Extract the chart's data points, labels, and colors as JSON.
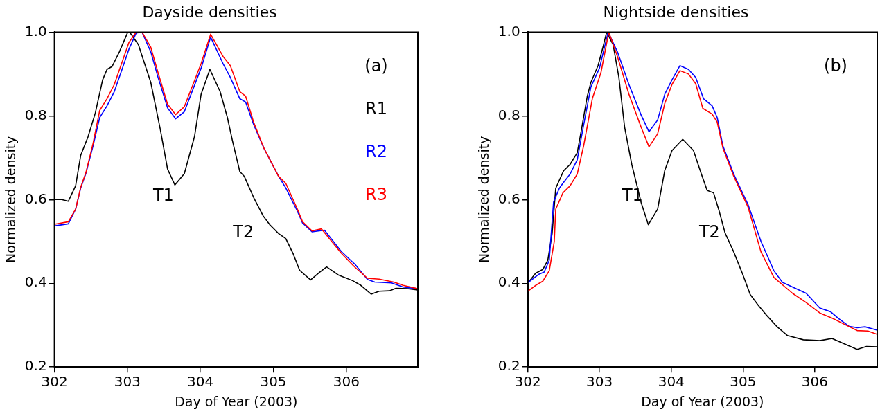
{
  "chart_data": [
    {
      "type": "line",
      "title": "Dayside densities",
      "xlabel": "Day of Year (2003)",
      "ylabel": "Normalized density",
      "xlim": [
        302,
        306.98
      ],
      "xticks": [
        302,
        303,
        304,
        305,
        306
      ],
      "ylim": [
        0.2,
        1.0
      ],
      "yticks": [
        0.2,
        0.4,
        0.6,
        0.8,
        {
          "value": 1.0,
          "label": "1.0"
        }
      ],
      "grid": false,
      "legend": "top right",
      "marker": "none",
      "line_style": "solid",
      "annotations": [
        "(a)",
        "T1",
        "T2"
      ],
      "series": [
        {
          "name": "R1",
          "color": "#000000",
          "x": [
            302,
            302.1,
            302.19,
            302.29,
            302.36,
            302.46,
            302.56,
            302.66,
            302.72,
            302.79,
            302.89,
            303.0,
            303.03,
            303.15,
            303.32,
            303.45,
            303.55,
            303.65,
            303.78,
            303.92,
            304.01,
            304.13,
            304.27,
            304.37,
            304.44,
            304.54,
            304.6,
            304.73,
            304.86,
            304.95,
            305.07,
            305.17,
            305.27,
            305.36,
            305.51,
            305.63,
            305.73,
            305.89,
            306.09,
            306.2,
            306.34,
            306.45,
            306.59,
            306.68,
            306.85,
            306.98
          ],
          "values": [
            0.6,
            0.6,
            0.596,
            0.633,
            0.706,
            0.75,
            0.807,
            0.886,
            0.911,
            0.918,
            0.953,
            0.998,
            1.0,
            0.97,
            0.88,
            0.768,
            0.673,
            0.635,
            0.662,
            0.751,
            0.852,
            0.911,
            0.858,
            0.796,
            0.74,
            0.667,
            0.656,
            0.605,
            0.561,
            0.54,
            0.519,
            0.507,
            0.471,
            0.431,
            0.408,
            0.426,
            0.439,
            0.42,
            0.406,
            0.395,
            0.374,
            0.381,
            0.382,
            0.388,
            0.387,
            0.384
          ]
        },
        {
          "name": "R2",
          "color": "#0000ff",
          "x": [
            302,
            302.19,
            302.29,
            302.36,
            302.43,
            302.53,
            302.62,
            302.72,
            302.82,
            302.92,
            303.02,
            303.12,
            303.2,
            303.32,
            303.42,
            303.55,
            303.66,
            303.78,
            303.91,
            304.01,
            304.14,
            304.31,
            304.41,
            304.54,
            304.62,
            304.73,
            304.87,
            305.07,
            305.17,
            305.33,
            305.4,
            305.53,
            305.7,
            305.93,
            306.12,
            306.29,
            306.39,
            306.62,
            306.78,
            306.98
          ],
          "values": [
            0.537,
            0.542,
            0.577,
            0.628,
            0.662,
            0.729,
            0.796,
            0.824,
            0.858,
            0.908,
            0.959,
            0.998,
            1.0,
            0.953,
            0.892,
            0.819,
            0.793,
            0.81,
            0.869,
            0.914,
            0.988,
            0.925,
            0.892,
            0.841,
            0.833,
            0.779,
            0.723,
            0.656,
            0.628,
            0.572,
            0.544,
            0.523,
            0.527,
            0.476,
            0.445,
            0.409,
            0.403,
            0.401,
            0.391,
            0.387
          ]
        },
        {
          "name": "R3",
          "color": "#ff0000",
          "x": [
            302,
            302.19,
            302.29,
            302.36,
            302.43,
            302.53,
            302.62,
            302.72,
            302.82,
            302.92,
            303.02,
            303.12,
            303.2,
            303.32,
            303.42,
            303.55,
            303.66,
            303.78,
            303.91,
            304.01,
            304.14,
            304.31,
            304.41,
            304.54,
            304.62,
            304.73,
            304.87,
            305.07,
            305.17,
            305.33,
            305.4,
            305.53,
            305.66,
            305.93,
            306.12,
            306.29,
            306.45,
            306.65,
            306.78,
            306.98
          ],
          "values": [
            0.541,
            0.547,
            0.577,
            0.63,
            0.664,
            0.735,
            0.813,
            0.841,
            0.875,
            0.925,
            0.975,
            1.0,
            1.0,
            0.964,
            0.903,
            0.828,
            0.803,
            0.822,
            0.88,
            0.925,
            0.995,
            0.942,
            0.92,
            0.858,
            0.847,
            0.785,
            0.723,
            0.656,
            0.639,
            0.577,
            0.547,
            0.525,
            0.53,
            0.472,
            0.438,
            0.412,
            0.41,
            0.403,
            0.395,
            0.387
          ]
        }
      ]
    },
    {
      "type": "line",
      "title": "Nightside densities",
      "xlabel": "Day of Year (2003)",
      "ylabel": "Normalized density",
      "xlim": [
        302,
        306.87
      ],
      "xticks": [
        302,
        303,
        304,
        305,
        306
      ],
      "ylim": [
        0.2,
        1.0
      ],
      "yticks": [
        0.2,
        0.4,
        0.6,
        0.8,
        {
          "value": 1.0,
          "label": "1.0"
        }
      ],
      "grid": false,
      "marker": "none",
      "line_style": "solid",
      "annotations": [
        "(b)",
        "T1",
        "T2"
      ],
      "series": [
        {
          "color": "#000000",
          "x": [
            302,
            302.11,
            302.21,
            302.28,
            302.34,
            302.39,
            302.5,
            302.59,
            302.69,
            302.75,
            302.83,
            302.88,
            302.98,
            303.05,
            303.1,
            303.19,
            303.27,
            303.35,
            303.45,
            303.58,
            303.68,
            303.81,
            303.91,
            304.01,
            304.16,
            304.31,
            304.42,
            304.5,
            304.59,
            304.67,
            304.75,
            304.87,
            304.99,
            305.1,
            305.21,
            305.32,
            305.47,
            305.62,
            305.84,
            306.07,
            306.24,
            306.4,
            306.59,
            306.72,
            306.87
          ],
          "values": [
            0.4,
            0.424,
            0.433,
            0.455,
            0.519,
            0.627,
            0.669,
            0.684,
            0.712,
            0.768,
            0.847,
            0.88,
            0.92,
            0.965,
            1.0,
            0.97,
            0.892,
            0.773,
            0.684,
            0.593,
            0.54,
            0.577,
            0.67,
            0.717,
            0.744,
            0.717,
            0.661,
            0.622,
            0.616,
            0.571,
            0.52,
            0.475,
            0.424,
            0.373,
            0.348,
            0.325,
            0.297,
            0.275,
            0.265,
            0.263,
            0.268,
            0.256,
            0.242,
            0.249,
            0.248
          ]
        },
        {
          "color": "#0000ff",
          "x": [
            302,
            302.15,
            302.23,
            302.3,
            302.36,
            302.44,
            302.49,
            302.59,
            302.69,
            302.78,
            302.88,
            303.0,
            303.12,
            303.25,
            303.41,
            303.58,
            303.69,
            303.81,
            303.91,
            304.01,
            304.12,
            304.24,
            304.34,
            304.45,
            304.57,
            304.64,
            304.72,
            304.87,
            305.07,
            305.25,
            305.43,
            305.55,
            305.88,
            306.07,
            306.22,
            306.33,
            306.48,
            306.59,
            306.7,
            306.87
          ],
          "values": [
            0.401,
            0.421,
            0.427,
            0.455,
            0.594,
            0.627,
            0.639,
            0.661,
            0.695,
            0.779,
            0.869,
            0.914,
            1.0,
            0.953,
            0.875,
            0.802,
            0.762,
            0.79,
            0.852,
            0.886,
            0.92,
            0.911,
            0.892,
            0.841,
            0.824,
            0.796,
            0.728,
            0.661,
            0.588,
            0.5,
            0.43,
            0.402,
            0.376,
            0.341,
            0.332,
            0.316,
            0.297,
            0.294,
            0.296,
            0.288
          ]
        },
        {
          "color": "#ff0000",
          "x": [
            302,
            302.11,
            302.21,
            302.3,
            302.37,
            302.39,
            302.49,
            302.59,
            302.69,
            302.78,
            302.9,
            303.02,
            303.13,
            303.25,
            303.41,
            303.58,
            303.69,
            303.81,
            303.91,
            304.01,
            304.12,
            304.24,
            304.34,
            304.44,
            304.57,
            304.64,
            304.72,
            304.87,
            305.07,
            305.25,
            305.43,
            305.69,
            305.88,
            306.07,
            306.25,
            306.4,
            306.59,
            306.74,
            306.87
          ],
          "values": [
            0.381,
            0.395,
            0.405,
            0.43,
            0.5,
            0.577,
            0.616,
            0.633,
            0.661,
            0.729,
            0.841,
            0.903,
            1.0,
            0.942,
            0.852,
            0.773,
            0.726,
            0.757,
            0.83,
            0.875,
            0.908,
            0.9,
            0.877,
            0.818,
            0.804,
            0.785,
            0.723,
            0.656,
            0.582,
            0.475,
            0.414,
            0.376,
            0.354,
            0.329,
            0.316,
            0.303,
            0.287,
            0.286,
            0.278
          ]
        }
      ]
    }
  ]
}
